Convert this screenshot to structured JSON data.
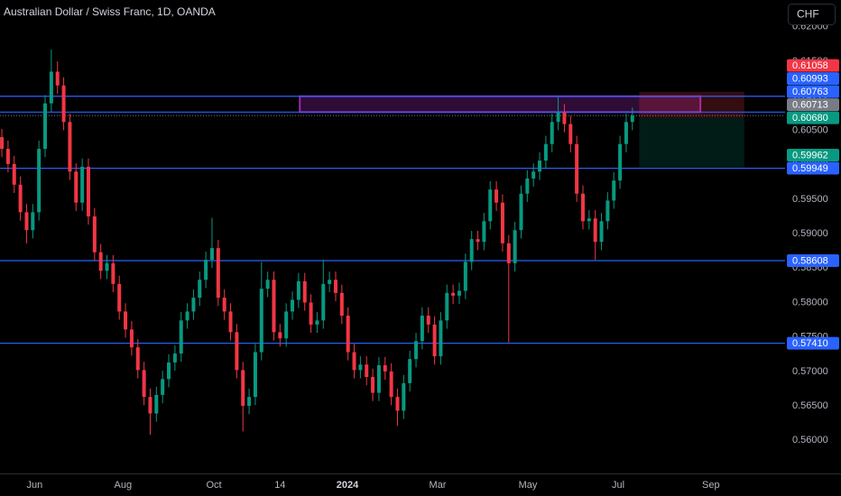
{
  "chart_data": {
    "type": "candlestick",
    "title": "Australian Dollar / Swiss Franc, 1D, OANDA",
    "currency": "CHF",
    "up_color": "#089981",
    "down_color": "#f23645",
    "open": [
      0.604,
      0.6023,
      0.6001,
      0.5971,
      0.5931,
      0.5905,
      0.5931,
      0.6023,
      0.6089,
      0.6135,
      0.6115,
      0.6062,
      0.599,
      0.5945,
      0.5997,
      0.5925,
      0.5873,
      0.5846,
      0.5857,
      0.5827,
      0.5787,
      0.5761,
      0.5735,
      0.5702,
      0.5663,
      0.5639,
      0.5666,
      0.5689,
      0.5713,
      0.5726,
      0.5774,
      0.5787,
      0.5807,
      0.5833,
      0.5862,
      0.5879,
      0.5807,
      0.5787,
      0.5757,
      0.5702,
      0.565,
      0.5663,
      0.5728,
      0.582,
      0.5833,
      0.5757,
      0.5748,
      0.5787,
      0.5804,
      0.5831,
      0.58,
      0.5768,
      0.5774,
      0.5827,
      0.5833,
      0.5814,
      0.5781,
      0.5728,
      0.5702,
      0.571,
      0.5692,
      0.5669,
      0.5709,
      0.57,
      0.5663,
      0.5643,
      0.5683,
      0.5718,
      0.5744,
      0.5781,
      0.5768,
      0.5722,
      0.5774,
      0.5814,
      0.581,
      0.5817,
      0.5859,
      0.5892,
      0.5888,
      0.5918,
      0.5964,
      0.5945,
      0.5886,
      0.5857,
      0.5905,
      0.5958,
      0.598,
      0.599,
      0.6006,
      0.603,
      0.6062,
      0.6076,
      0.6059,
      0.603,
      0.5958,
      0.5918,
      0.5922,
      0.5888,
      0.5918,
      0.5948,
      0.5977,
      0.603,
      0.6062
    ],
    "high": [
      0.6052,
      0.6035,
      0.6013,
      0.5983,
      0.5943,
      0.5943,
      0.6035,
      0.6101,
      0.6167,
      0.615,
      0.6127,
      0.6074,
      0.6002,
      0.6009,
      0.6009,
      0.5937,
      0.5885,
      0.5869,
      0.5869,
      0.5839,
      0.5799,
      0.5773,
      0.5747,
      0.5714,
      0.5675,
      0.5678,
      0.5701,
      0.5725,
      0.5738,
      0.5786,
      0.5799,
      0.5819,
      0.5845,
      0.5874,
      0.5923,
      0.5891,
      0.5819,
      0.5799,
      0.5769,
      0.5714,
      0.5675,
      0.574,
      0.5859,
      0.5845,
      0.5845,
      0.5769,
      0.5799,
      0.5816,
      0.5843,
      0.5843,
      0.5812,
      0.5786,
      0.5862,
      0.5845,
      0.5845,
      0.5826,
      0.5793,
      0.574,
      0.5722,
      0.5722,
      0.5704,
      0.5721,
      0.5721,
      0.5712,
      0.5675,
      0.5695,
      0.573,
      0.5756,
      0.5793,
      0.5793,
      0.578,
      0.5786,
      0.5826,
      0.5826,
      0.5829,
      0.5871,
      0.5904,
      0.5904,
      0.593,
      0.5976,
      0.5976,
      0.5957,
      0.5898,
      0.5917,
      0.597,
      0.5992,
      0.6002,
      0.6018,
      0.6042,
      0.6074,
      0.6098,
      0.6088,
      0.6071,
      0.6042,
      0.597,
      0.5934,
      0.5934,
      0.593,
      0.596,
      0.5989,
      0.6042,
      0.6074,
      0.6083
    ],
    "low": [
      0.6011,
      0.5989,
      0.5959,
      0.5919,
      0.5886,
      0.5893,
      0.5919,
      0.6011,
      0.6077,
      0.6103,
      0.605,
      0.5978,
      0.5933,
      0.5933,
      0.5913,
      0.5861,
      0.5834,
      0.5834,
      0.5815,
      0.5775,
      0.5749,
      0.5723,
      0.569,
      0.5651,
      0.5608,
      0.5627,
      0.5654,
      0.5677,
      0.5701,
      0.5714,
      0.5762,
      0.5775,
      0.5795,
      0.5821,
      0.585,
      0.5795,
      0.5775,
      0.5745,
      0.569,
      0.5613,
      0.5638,
      0.5651,
      0.5716,
      0.5808,
      0.5745,
      0.5736,
      0.5736,
      0.5775,
      0.5792,
      0.5788,
      0.5756,
      0.5756,
      0.5762,
      0.5815,
      0.5802,
      0.5769,
      0.5716,
      0.569,
      0.569,
      0.568,
      0.5657,
      0.5657,
      0.5688,
      0.5651,
      0.5621,
      0.5631,
      0.5671,
      0.5706,
      0.5732,
      0.5756,
      0.571,
      0.571,
      0.5762,
      0.5798,
      0.5798,
      0.5805,
      0.5847,
      0.5876,
      0.5876,
      0.5906,
      0.5933,
      0.5874,
      0.5742,
      0.5845,
      0.5893,
      0.5946,
      0.5968,
      0.5978,
      0.5994,
      0.6018,
      0.605,
      0.6047,
      0.6018,
      0.5946,
      0.5906,
      0.5906,
      0.5862,
      0.5876,
      0.5906,
      0.5936,
      0.5965,
      0.6018,
      0.605
    ],
    "close": [
      0.6023,
      0.6001,
      0.5971,
      0.5931,
      0.5905,
      0.5931,
      0.6023,
      0.6089,
      0.6135,
      0.6115,
      0.6062,
      0.599,
      0.5945,
      0.5997,
      0.5925,
      0.5873,
      0.5846,
      0.5857,
      0.5827,
      0.5787,
      0.5761,
      0.5735,
      0.5702,
      0.5663,
      0.5639,
      0.5666,
      0.5689,
      0.5713,
      0.5726,
      0.5774,
      0.5787,
      0.5807,
      0.5833,
      0.5862,
      0.5879,
      0.5807,
      0.5787,
      0.5757,
      0.5702,
      0.565,
      0.5663,
      0.5728,
      0.582,
      0.5833,
      0.5757,
      0.5748,
      0.5787,
      0.5804,
      0.5831,
      0.58,
      0.5768,
      0.5774,
      0.5827,
      0.5833,
      0.5814,
      0.5781,
      0.5728,
      0.5702,
      0.571,
      0.5692,
      0.5669,
      0.5709,
      0.57,
      0.5663,
      0.5643,
      0.5683,
      0.5718,
      0.5744,
      0.5781,
      0.5768,
      0.5722,
      0.5774,
      0.5814,
      0.581,
      0.5817,
      0.5859,
      0.5892,
      0.5888,
      0.5918,
      0.5964,
      0.5945,
      0.5886,
      0.5857,
      0.5905,
      0.5958,
      0.598,
      0.599,
      0.6006,
      0.603,
      0.6062,
      0.6076,
      0.6059,
      0.603,
      0.5958,
      0.5918,
      0.5922,
      0.5888,
      0.5918,
      0.5948,
      0.5977,
      0.603,
      0.6062,
      0.60713
    ],
    "xlim": [
      -0.3,
      126.7
    ],
    "xticks": [
      {
        "value": 5.3,
        "label": "Jun"
      },
      {
        "value": 19.6,
        "label": "Aug"
      },
      {
        "value": 34.3,
        "label": "Oct"
      },
      {
        "value": 45,
        "label": "14"
      },
      {
        "value": 55.9,
        "label": "2024"
      },
      {
        "value": 70.5,
        "label": "Mar"
      },
      {
        "value": 85.1,
        "label": "May"
      },
      {
        "value": 99.7,
        "label": "Jul"
      },
      {
        "value": 114.7,
        "label": "Sep"
      }
    ],
    "ylim": [
      0.5552,
      0.6239
    ],
    "yticks": [
      {
        "value": 0.56,
        "label": "0.56000"
      },
      {
        "value": 0.565,
        "label": "0.56500"
      },
      {
        "value": 0.57,
        "label": "0.57000"
      },
      {
        "value": 0.575,
        "label": "0.57500"
      },
      {
        "value": 0.58,
        "label": "0.58000"
      },
      {
        "value": 0.585,
        "label": "0.58500"
      },
      {
        "value": 0.59,
        "label": "0.59000"
      },
      {
        "value": 0.595,
        "label": "0.59500"
      },
      {
        "value": 0.6,
        "label": "0.60000"
      },
      {
        "value": 0.605,
        "label": "0.60500"
      },
      {
        "value": 0.61,
        "label": "0.61000"
      },
      {
        "value": 0.615,
        "label": "0.61500"
      },
      {
        "value": 0.62,
        "label": "0.62000"
      }
    ],
    "hlines": {
      "color": "#2962ff",
      "levels": [
        {
          "value": 0.60993,
          "label": "0.60993"
        },
        {
          "value": 0.60763,
          "label": "0.60763"
        },
        {
          "value": 0.59949,
          "label": "0.59949"
        },
        {
          "value": 0.58608,
          "label": "0.58608"
        },
        {
          "value": 0.5741,
          "label": "0.57410"
        }
      ]
    },
    "zone": {
      "x_range": [
        48.2,
        113
      ],
      "y_range": [
        0.60763,
        0.60993
      ],
      "color": "#9c27b0"
    },
    "position": {
      "x_range": [
        103.1,
        120.1
      ],
      "entry": {
        "value": 0.6068,
        "label": "0.60680"
      },
      "stop": {
        "value": 0.61058,
        "label": "0.61058"
      },
      "target": {
        "value": 0.59962,
        "label": "0.59962"
      }
    },
    "last_price": {
      "value": 0.60713,
      "label": "0.60713"
    }
  }
}
